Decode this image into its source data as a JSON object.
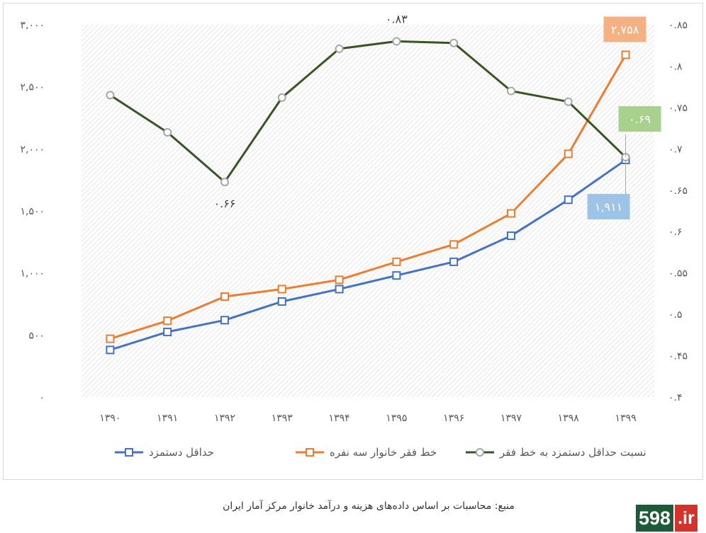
{
  "chart_data": {
    "type": "line",
    "categories": [
      "۱۳۹۰",
      "۱۳۹۱",
      "۱۳۹۲",
      "۱۳۹۳",
      "۱۳۹۴",
      "۱۳۹۵",
      "۱۳۹۶",
      "۱۳۹۷",
      "۱۳۹۸",
      "۱۳۹۹"
    ],
    "y_left": {
      "ylim": [
        0,
        3000
      ],
      "ticks": [
        0,
        500,
        1000,
        1500,
        2000,
        2500,
        3000
      ],
      "tick_labels": [
        "۰",
        "۵۰۰",
        "۱,۰۰۰",
        "۱,۵۰۰",
        "۲,۰۰۰",
        "۲,۵۰۰",
        "۳,۰۰۰"
      ]
    },
    "y_right": {
      "ylim": [
        0.4,
        0.85
      ],
      "ticks": [
        0.4,
        0.45,
        0.5,
        0.55,
        0.6,
        0.65,
        0.7,
        0.75,
        0.8,
        0.85
      ],
      "tick_labels": [
        "۰.۴",
        "۰.۴۵",
        "۰.۵",
        "۰.۵۵",
        "۰.۶",
        "۰.۶۵",
        "۰.۷",
        "۰.۷۵",
        "۰.۸",
        "۰.۸۵"
      ]
    },
    "grid": false,
    "legend_position": "bottom",
    "series": [
      {
        "name": "حداقل دستمزد",
        "axis": "left",
        "color": "#4472c4",
        "marker": "square",
        "values": [
          380,
          525,
          620,
          770,
          870,
          980,
          1090,
          1300,
          1590,
          1911
        ]
      },
      {
        "name": "خط فقر خانوار سه نفره",
        "axis": "left",
        "color": "#ed7d31",
        "marker": "square",
        "values": [
          470,
          615,
          810,
          870,
          945,
          1090,
          1230,
          1480,
          1960,
          2758
        ]
      },
      {
        "name": "نسبت حداقل دستمزد به خط فقر",
        "axis": "right",
        "color": "#375623",
        "marker": "circle",
        "values": [
          0.765,
          0.72,
          0.66,
          0.762,
          0.821,
          0.83,
          0.828,
          0.77,
          0.757,
          0.69
        ]
      }
    ],
    "data_labels": [
      {
        "series": 2,
        "index": 2,
        "text": "۰.۶۶",
        "style": "plain"
      },
      {
        "series": 2,
        "index": 5,
        "text": "۰.۸۳",
        "style": "plain"
      },
      {
        "series": 1,
        "index": 9,
        "text": "۲,۷۵۸",
        "style": "box",
        "fill": "#f4b183",
        "color": "#ffffff"
      },
      {
        "series": 2,
        "index": 9,
        "text": "۰.۶۹",
        "style": "box",
        "fill": "#a9d18e",
        "color": "#ffffff"
      },
      {
        "series": 0,
        "index": 9,
        "text": "۱,۹۱۱",
        "style": "box",
        "fill": "#9dc3e6",
        "color": "#ffffff"
      }
    ]
  },
  "source_caption": "منبع: محاسبات بر اساس داده‌های هزینه و درآمد خانوار مرکز آمار ایران",
  "logo": {
    "number": "598",
    "tld": ".ir"
  }
}
